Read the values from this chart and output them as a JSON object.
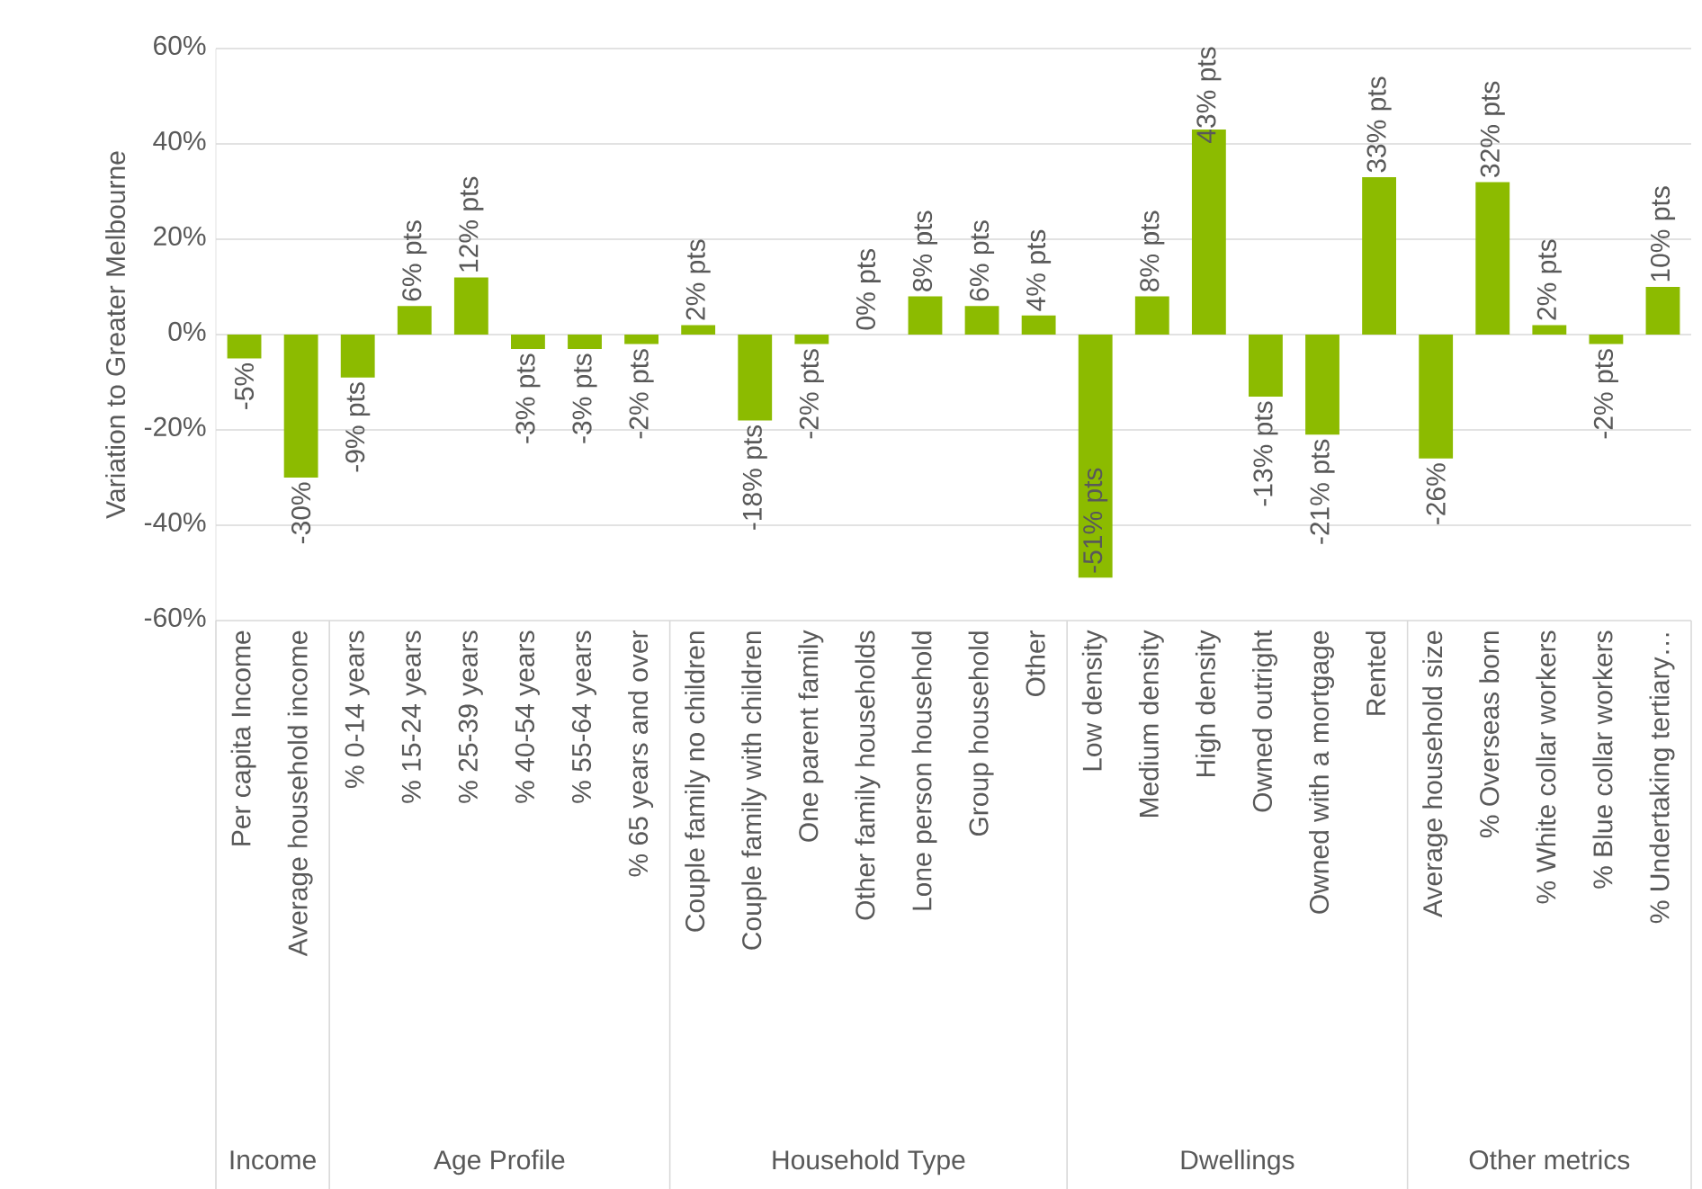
{
  "chart_data": {
    "type": "bar",
    "ylabel": "Variation to Greater Melbourne",
    "categories": [
      "Per capita Income",
      "Average household income",
      "% 0-14 years",
      "% 15-24 years",
      "% 25-39 years",
      "% 40-54 years",
      "% 55-64 years",
      "% 65 years and over",
      "Couple family no children",
      "Couple family with children",
      "One parent family",
      "Other family households",
      "Lone person household",
      "Group household",
      "Other",
      "Low density",
      "Medium density",
      "High density",
      "Owned outright",
      "Owned with a mortgage",
      "Rented",
      "Average household size",
      "% Overseas born",
      "% White collar workers",
      "% Blue collar workers",
      "% Undertaking tertiary…"
    ],
    "values": [
      -5,
      -30,
      -9,
      6,
      12,
      -3,
      -3,
      -2,
      2,
      -18,
      -2,
      0,
      8,
      6,
      4,
      -51,
      8,
      43,
      -13,
      -21,
      33,
      -26,
      32,
      2,
      -2,
      10
    ],
    "value_labels": [
      "-5%",
      "-30%",
      "-9% pts",
      "6% pts",
      "12% pts",
      "-3% pts",
      "-3% pts",
      "-2% pts",
      "2% pts",
      "-18% pts",
      "-2% pts",
      "0% pts",
      "8% pts",
      "6% pts",
      "4% pts",
      "-51% pts",
      "8% pts",
      "43% pts",
      "-13% pts",
      "-21% pts",
      "33% pts",
      "-26%",
      "32% pts",
      "2% pts",
      "-2% pts",
      "10% pts"
    ],
    "color": "#8cbb00",
    "ylim": [
      -60,
      60
    ],
    "yticks": [
      {
        "value": -60,
        "label": "-60%"
      },
      {
        "value": -40,
        "label": "-40%"
      },
      {
        "value": -20,
        "label": "-20%"
      },
      {
        "value": 0,
        "label": "0%"
      },
      {
        "value": 20,
        "label": "20%"
      },
      {
        "value": 40,
        "label": "40%"
      },
      {
        "value": 60,
        "label": "60%"
      }
    ],
    "grid": "y",
    "annotations": [
      "Income",
      "Age Profile",
      "Household Type",
      "Dwellings",
      "Other metrics"
    ]
  }
}
